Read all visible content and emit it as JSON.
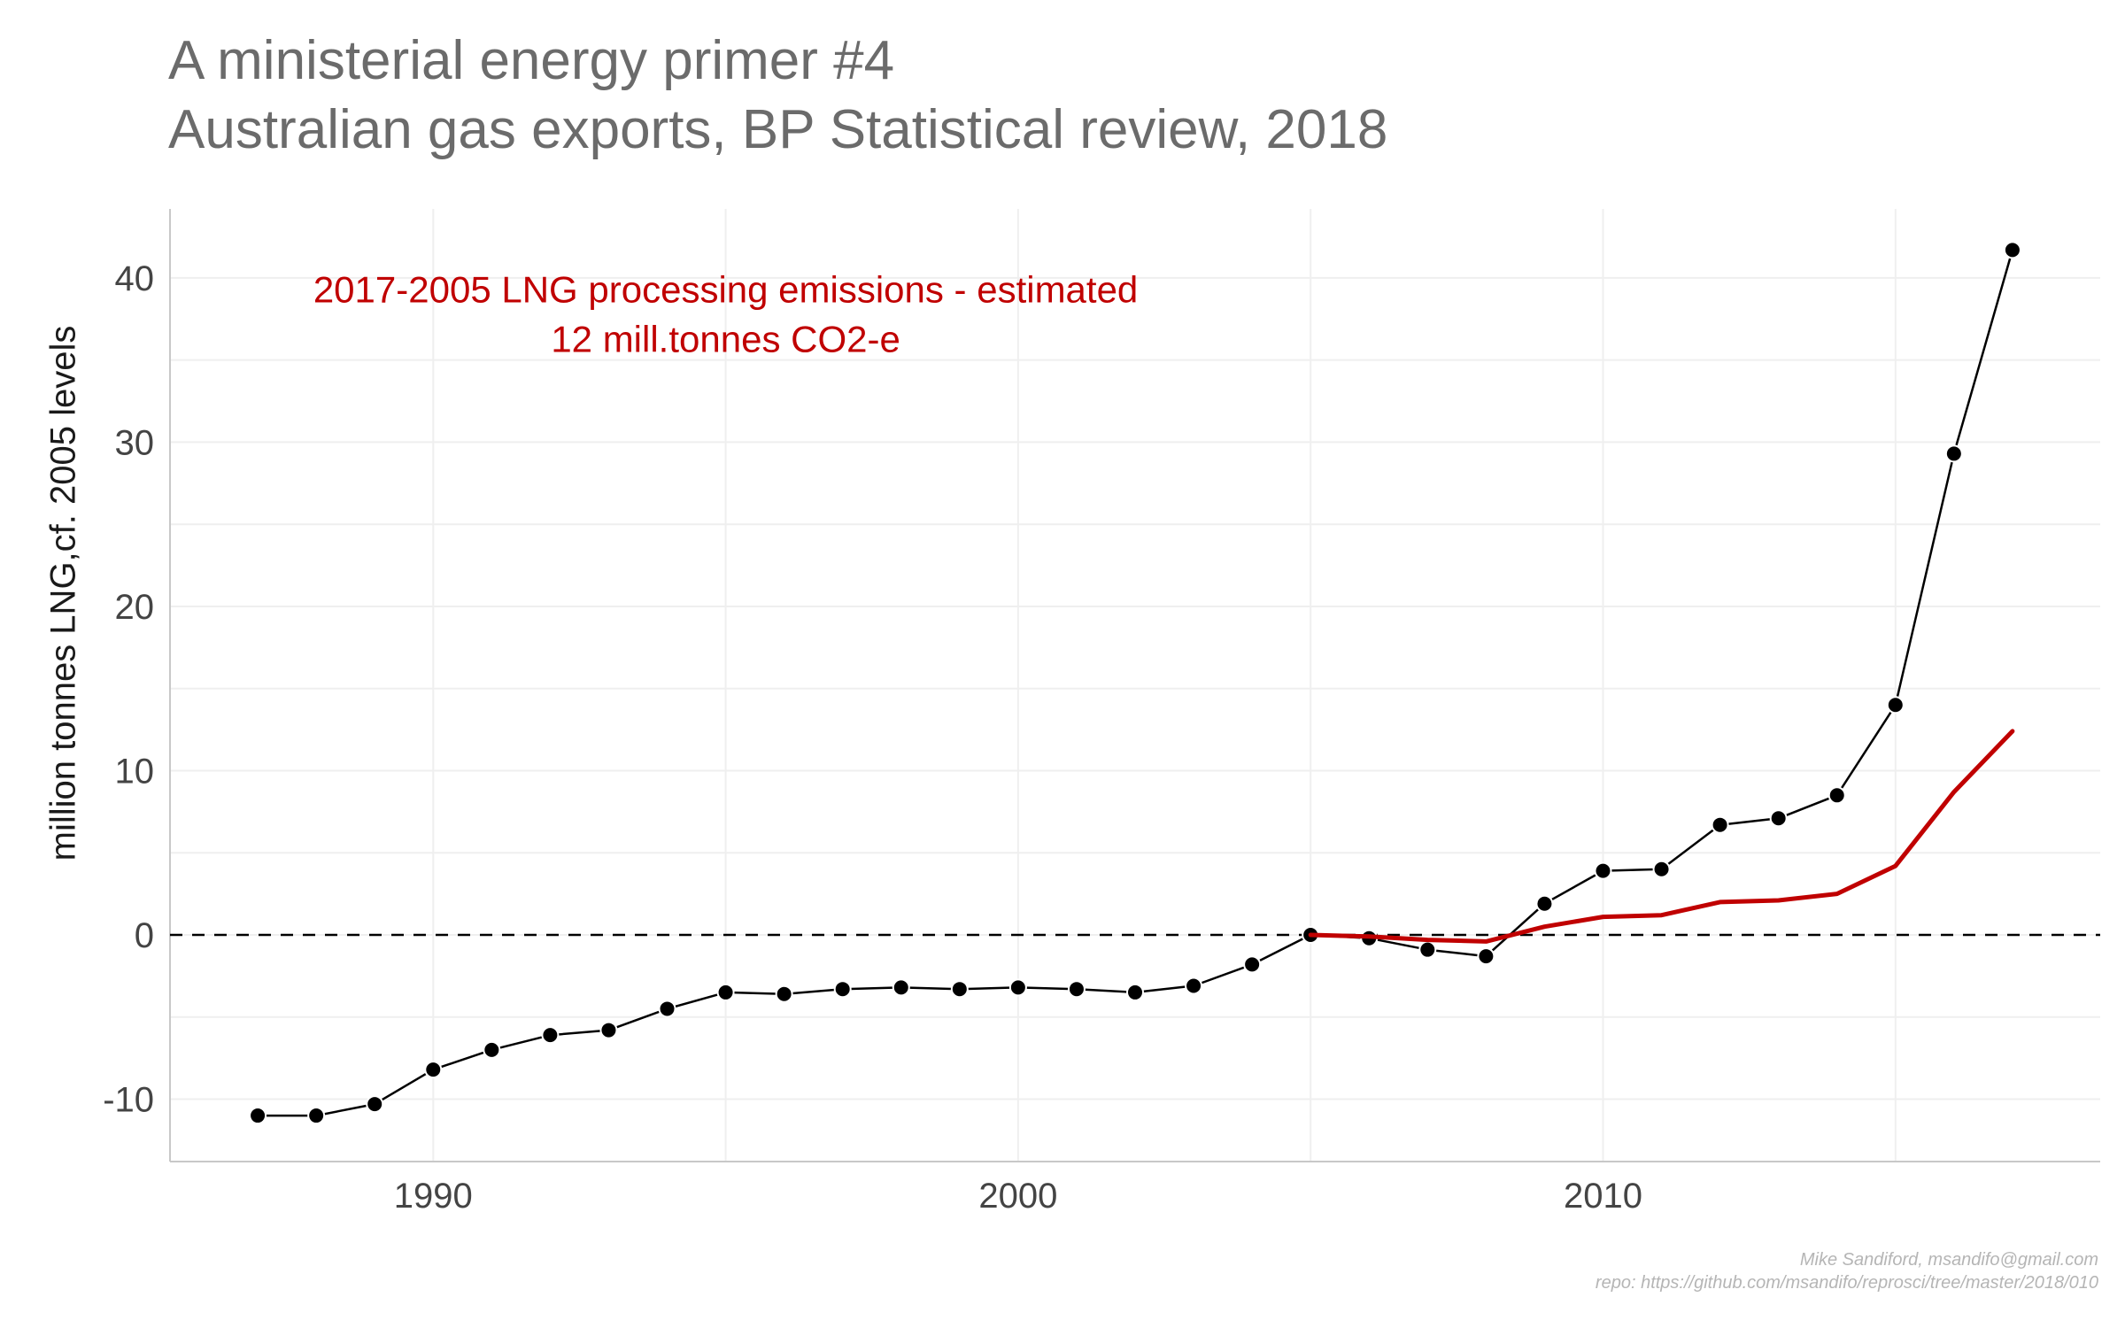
{
  "chart_data": {
    "type": "line",
    "title": "A ministerial energy primer #4",
    "subtitle": "Australian gas exports, BP Statistical review, 2018",
    "xlabel": "",
    "ylabel": "million tonnes LNG,cf. 2005 levels",
    "xlim": [
      1985.5,
      2018.5
    ],
    "ylim": [
      -13.8,
      44.2
    ],
    "x_ticks": [
      1990,
      2000,
      2010
    ],
    "y_ticks": [
      -10,
      0,
      10,
      20,
      30,
      40
    ],
    "grid": true,
    "reference_line": {
      "y": 0,
      "style": "dashed"
    },
    "annotation": {
      "lines": [
        "2017-2005 LNG processing emissions - estimated",
        "12 mill.tonnes CO2-e"
      ],
      "x": 1995,
      "y": 38.5,
      "color": "#c00000"
    },
    "series": [
      {
        "name": "",
        "style": "line+points",
        "color": "#000000",
        "x": [
          1987,
          1988,
          1989,
          1990,
          1991,
          1992,
          1993,
          1994,
          1995,
          1996,
          1997,
          1998,
          1999,
          2000,
          2001,
          2002,
          2003,
          2004,
          2005,
          2006,
          2007,
          2008,
          2009,
          2010,
          2011,
          2012,
          2013,
          2014,
          2015,
          2016,
          2017
        ],
        "y": [
          -11.0,
          -11.0,
          -10.3,
          -8.2,
          -7.0,
          -6.1,
          -5.8,
          -4.5,
          -3.5,
          -3.6,
          -3.3,
          -3.2,
          -3.3,
          -3.2,
          -3.3,
          -3.5,
          -3.1,
          -1.8,
          0.0,
          -0.2,
          -0.9,
          -1.3,
          1.9,
          3.9,
          4.0,
          6.7,
          7.1,
          8.5,
          14.0,
          29.3,
          41.7
        ]
      },
      {
        "name": "",
        "style": "line",
        "color": "#c00000",
        "x": [
          2005,
          2006,
          2007,
          2008,
          2009,
          2010,
          2011,
          2012,
          2013,
          2014,
          2015,
          2016,
          2017
        ],
        "y": [
          0.0,
          -0.1,
          -0.3,
          -0.4,
          0.5,
          1.1,
          1.2,
          2.0,
          2.1,
          2.5,
          4.2,
          8.7,
          12.4
        ]
      }
    ]
  },
  "caption": {
    "author": "Mike Sandiford, msandifo@gmail.com",
    "repo": "repo: https://github.com/msandifo/reprosci/tree/master/2018/010"
  }
}
